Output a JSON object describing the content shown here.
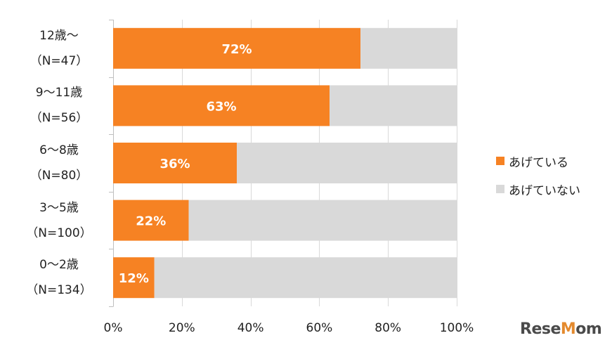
{
  "chart_data": {
    "type": "bar",
    "orientation": "horizontal",
    "stacked": true,
    "categories": [
      {
        "line1": "12歳～",
        "line2": "（N=47）"
      },
      {
        "line1": "9～11歳",
        "line2": "（N=56）"
      },
      {
        "line1": "6～8歳",
        "line2": "（N=80）"
      },
      {
        "line1": "3～5歳",
        "line2": "（N=100）"
      },
      {
        "line1": "0～2歳",
        "line2": "（N=134）"
      }
    ],
    "series": [
      {
        "name": "あげている",
        "color": "#f68223",
        "values": [
          72,
          63,
          36,
          22,
          12
        ]
      },
      {
        "name": "あげていない",
        "color": "#d9d9d9",
        "values": [
          28,
          37,
          64,
          78,
          88
        ]
      }
    ],
    "data_labels": [
      "72%",
      "63%",
      "36%",
      "22%",
      "12%"
    ],
    "xlim": [
      0,
      100
    ],
    "xticks": [
      "0%",
      "20%",
      "40%",
      "60%",
      "80%",
      "100%"
    ],
    "grid": true,
    "legend_position": "right"
  },
  "watermark": "ReseMom"
}
